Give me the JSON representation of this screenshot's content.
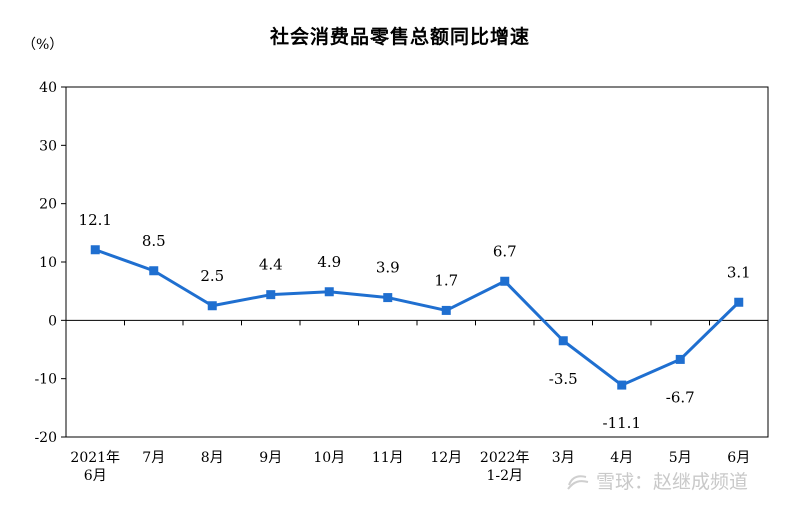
{
  "chart_data": {
    "type": "line",
    "title": "社会消费品零售总额同比增速",
    "ylabel": "（%）",
    "xlabel": "",
    "categories": [
      [
        "2021年",
        "6月"
      ],
      [
        "7月"
      ],
      [
        "8月"
      ],
      [
        "9月"
      ],
      [
        "10月"
      ],
      [
        "11月"
      ],
      [
        "12月"
      ],
      [
        "2022年",
        "1-2月"
      ],
      [
        "3月"
      ],
      [
        "4月"
      ],
      [
        "5月"
      ],
      [
        "6月"
      ]
    ],
    "series": [
      {
        "values": [
          12.1,
          8.5,
          2.5,
          4.4,
          4.9,
          3.9,
          1.7,
          6.7,
          -3.5,
          -11.1,
          -6.7,
          3.1
        ],
        "color": "#1f6fd0"
      }
    ],
    "data_labels": [
      "12.1",
      "8.5",
      "2.5",
      "4.4",
      "4.9",
      "3.9",
      "1.7",
      "6.7",
      "-3.5",
      "-11.1",
      "-6.7",
      "3.1"
    ],
    "yticks": [
      "40",
      "30",
      "20",
      "10",
      "0",
      "-10",
      "-20"
    ],
    "ylim": [
      -20,
      40
    ],
    "grid": false,
    "legend": "none"
  },
  "watermark": {
    "text": "雪球：赵继成频道",
    "icon": "snowball-logo-icon"
  }
}
